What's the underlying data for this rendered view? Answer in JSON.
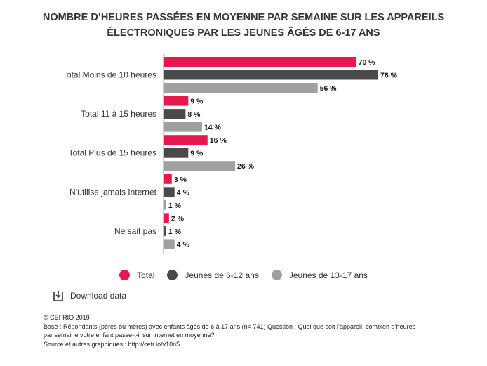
{
  "title_lines": [
    "NOMBRE D’HEURES PASSÉES EN MOYENNE PAR SEMAINE SUR LES APPAREILS",
    "ÉLECTRONIQUES PAR LES JEUNES ÂGÉS DE 6-17 ANS"
  ],
  "chart_data": {
    "type": "bar",
    "orientation": "horizontal",
    "categories": [
      "Total Moins de 10 heures",
      "Total 11 à 15 heures",
      "Total Plus de 15 heures",
      "N’utilise jamais Internet",
      "Ne sait pas"
    ],
    "series": [
      {
        "name": "Total",
        "color": "#E8184E",
        "values": [
          70,
          9,
          16,
          3,
          2
        ]
      },
      {
        "name": "Jeunes de 6-12 ans",
        "color": "#4A4A4A",
        "values": [
          78,
          8,
          9,
          4,
          1
        ]
      },
      {
        "name": "Jeunes de 13-17 ans",
        "color": "#A0A0A0",
        "values": [
          56,
          14,
          26,
          1,
          4
        ]
      }
    ],
    "value_suffix": " %",
    "xlim": [
      0,
      78
    ],
    "grid": false,
    "legend_position": "bottom"
  },
  "legend": [
    {
      "label": "Total",
      "color": "#E8184E"
    },
    {
      "label": "Jeunes de 6-12 ans",
      "color": "#4A4A4A"
    },
    {
      "label": "Jeunes de 13-17 ans",
      "color": "#A0A0A0"
    }
  ],
  "download_label": "Download data",
  "footer": {
    "copyright": "© CEFRIO  2019",
    "base_line1": "Base : Répondants (pères ou mères) avec enfants âgés de 6 à 17 ans (n= 741) Question : Quel que soit l’appareil, combien d’heures",
    "base_line2": "par semaine votre enfant passe-t-il sur Internet en moyenne?",
    "source": "Source et autres graphiques : http://cefr.io/v10n5"
  }
}
